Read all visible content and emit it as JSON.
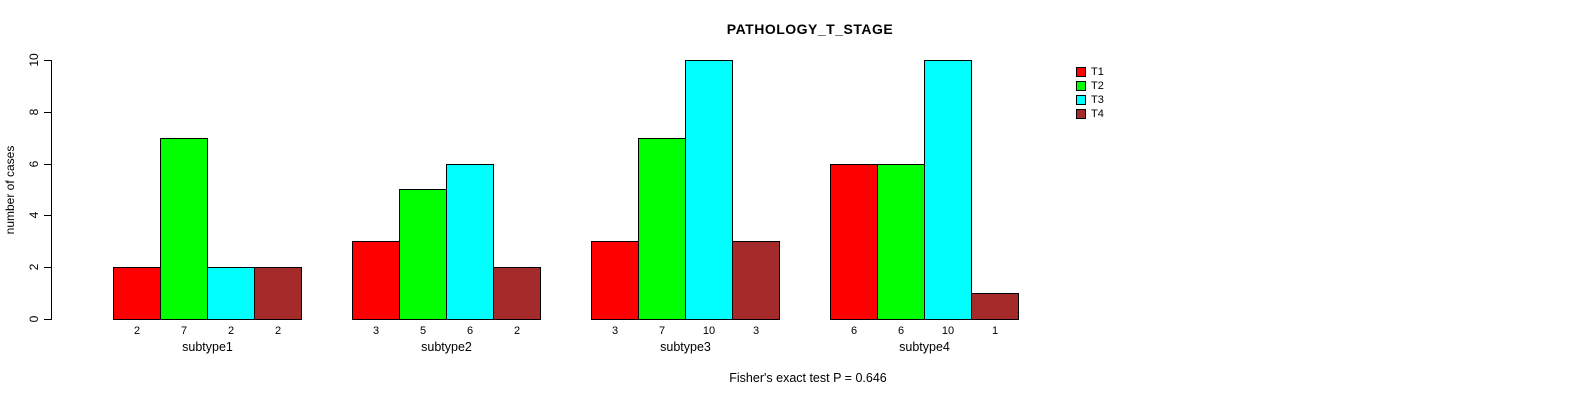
{
  "title": "PATHOLOGY_T_STAGE",
  "caption": "Fisher's exact test P = 0.646",
  "y_axis_label": "number of cases",
  "chart_data": {
    "type": "bar",
    "title": "PATHOLOGY_T_STAGE",
    "xlabel": "",
    "ylabel": "number of cases",
    "ylim": [
      0,
      10
    ],
    "yticks": [
      0,
      2,
      4,
      6,
      8,
      10
    ],
    "grid": false,
    "legend_position": "top-right",
    "bar_value_labels_shown": true,
    "annotation": "Fisher's exact test P = 0.646",
    "categories": [
      "subtype1",
      "subtype2",
      "subtype3",
      "subtype4"
    ],
    "series": [
      {
        "name": "T1",
        "color": "#FF0000",
        "values": [
          2,
          3,
          3,
          6
        ]
      },
      {
        "name": "T2",
        "color": "#00FF00",
        "values": [
          7,
          5,
          7,
          6
        ]
      },
      {
        "name": "T3",
        "color": "#00FFFF",
        "values": [
          2,
          6,
          10,
          10
        ]
      },
      {
        "name": "T4",
        "color": "#A52A2A",
        "values": [
          2,
          2,
          3,
          1
        ]
      }
    ]
  }
}
